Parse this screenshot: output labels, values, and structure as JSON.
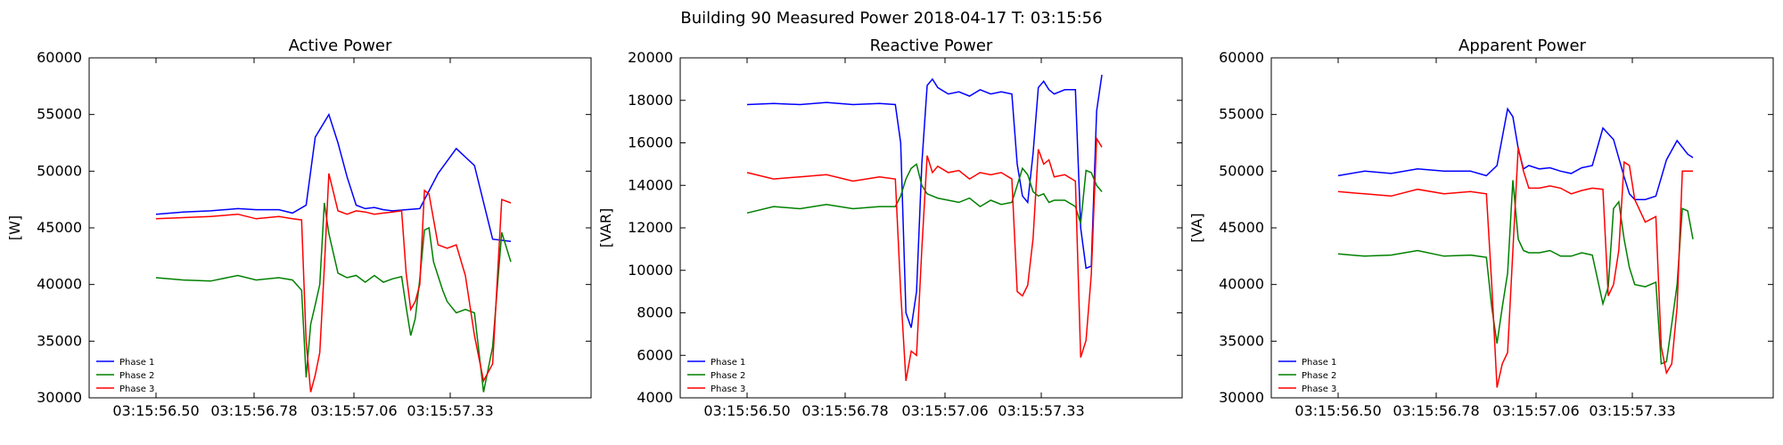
{
  "figure": {
    "suptitle": "Building 90 Measured Power 2018-04-17 T: 03:15:56"
  },
  "chart_data": [
    {
      "type": "line",
      "title": "Active Power",
      "xlabel": "",
      "ylabel": "[W]",
      "x_tick_labels": [
        "03:15:56.50",
        "03:15:56.78",
        "03:15:57.06",
        "03:15:57.33"
      ],
      "ylim": [
        30000,
        60000
      ],
      "y_ticks": [
        30000,
        35000,
        40000,
        45000,
        50000,
        55000,
        60000
      ],
      "legend_position": "bottom-left",
      "grid": false,
      "series": [
        {
          "name": "Phase 1",
          "color": "#0000ff",
          "x": [
            0,
            6,
            12,
            18,
            22,
            27,
            30,
            33,
            35,
            38,
            40,
            42,
            44,
            46,
            48,
            50,
            52,
            55,
            58,
            62,
            66,
            70,
            74,
            78
          ],
          "y": [
            46200,
            46400,
            46500,
            46700,
            46600,
            46600,
            46300,
            47000,
            53000,
            55000,
            52500,
            49500,
            47000,
            46700,
            46800,
            46600,
            46500,
            46600,
            46700,
            49800,
            52000,
            50500,
            44000,
            43800
          ]
        },
        {
          "name": "Phase 2",
          "color": "#008000",
          "x": [
            0,
            6,
            12,
            18,
            22,
            27,
            30,
            32,
            33,
            34,
            35,
            36,
            37,
            38,
            40,
            42,
            44,
            46,
            48,
            50,
            52,
            54,
            55,
            56,
            57,
            58,
            59,
            60,
            61,
            63,
            64,
            66,
            68,
            70,
            72,
            74,
            76,
            78
          ],
          "y": [
            40600,
            40400,
            40300,
            40800,
            40400,
            40600,
            40400,
            39500,
            31800,
            36500,
            38200,
            40000,
            47200,
            44500,
            41000,
            40600,
            40800,
            40200,
            40800,
            40200,
            40500,
            40700,
            38000,
            35500,
            37000,
            40500,
            44800,
            45000,
            42000,
            39500,
            38500,
            37500,
            37800,
            37500,
            30500,
            34500,
            44600,
            42000
          ]
        },
        {
          "name": "Phase 3",
          "color": "#ff0000",
          "x": [
            0,
            6,
            12,
            18,
            22,
            27,
            30,
            32,
            33,
            34,
            35,
            36,
            37,
            38,
            40,
            42,
            44,
            46,
            48,
            50,
            52,
            54,
            55,
            56,
            57,
            58,
            59,
            60,
            62,
            64,
            66,
            68,
            70,
            72,
            74,
            76,
            78
          ],
          "y": [
            45800,
            45900,
            46000,
            46200,
            45800,
            46000,
            45800,
            45700,
            35000,
            30500,
            32000,
            34000,
            41500,
            49800,
            46500,
            46200,
            46500,
            46400,
            46200,
            46300,
            46400,
            46500,
            41000,
            37800,
            38500,
            40000,
            48300,
            48000,
            43500,
            43200,
            43500,
            40800,
            35500,
            31500,
            33000,
            47500,
            47200
          ]
        }
      ]
    },
    {
      "type": "line",
      "title": "Reactive Power",
      "xlabel": "",
      "ylabel": "[VAR]",
      "x_tick_labels": [
        "03:15:56.50",
        "03:15:56.78",
        "03:15:57.06",
        "03:15:57.33"
      ],
      "ylim": [
        4000,
        20000
      ],
      "y_ticks": [
        4000,
        6000,
        8000,
        10000,
        12000,
        14000,
        16000,
        18000,
        20000
      ],
      "legend_position": "bottom-left",
      "grid": false,
      "series": [
        {
          "name": "Phase 1",
          "color": "#0000ff",
          "x": [
            0,
            5,
            10,
            15,
            20,
            25,
            28,
            29,
            30,
            31,
            32,
            33,
            34,
            35,
            36,
            38,
            40,
            42,
            44,
            46,
            48,
            50,
            51,
            52,
            53,
            54,
            55,
            56,
            57,
            58,
            60,
            62,
            63,
            64,
            65,
            66,
            67
          ],
          "y": [
            17800,
            17850,
            17800,
            17900,
            17800,
            17850,
            17800,
            16000,
            8000,
            7300,
            9000,
            15000,
            18700,
            19000,
            18600,
            18300,
            18400,
            18200,
            18500,
            18300,
            18400,
            18300,
            15000,
            13500,
            13200,
            15500,
            18600,
            18900,
            18500,
            18300,
            18500,
            18500,
            12000,
            10100,
            10200,
            17500,
            19200
          ]
        },
        {
          "name": "Phase 2",
          "color": "#008000",
          "x": [
            0,
            5,
            10,
            15,
            20,
            25,
            28,
            29,
            30,
            31,
            32,
            33,
            34,
            35,
            36,
            38,
            40,
            42,
            44,
            46,
            48,
            50,
            51,
            52,
            53,
            54,
            55,
            56,
            57,
            58,
            60,
            62,
            63,
            64,
            65,
            66,
            67
          ],
          "y": [
            12700,
            13000,
            12900,
            13100,
            12900,
            13000,
            13000,
            13500,
            14300,
            14800,
            15000,
            14000,
            13600,
            13500,
            13400,
            13300,
            13200,
            13400,
            13000,
            13300,
            13100,
            13200,
            14000,
            14800,
            14500,
            13700,
            13500,
            13600,
            13200,
            13300,
            13300,
            13000,
            12200,
            14700,
            14600,
            14000,
            13700
          ]
        },
        {
          "name": "Phase 3",
          "color": "#ff0000",
          "x": [
            0,
            5,
            10,
            15,
            20,
            25,
            28,
            29,
            30,
            31,
            32,
            33,
            34,
            35,
            36,
            38,
            40,
            42,
            44,
            46,
            48,
            50,
            51,
            52,
            53,
            54,
            55,
            56,
            57,
            58,
            60,
            62,
            63,
            64,
            65,
            66,
            67
          ],
          "y": [
            14600,
            14300,
            14400,
            14500,
            14200,
            14400,
            14300,
            9000,
            4800,
            6200,
            6000,
            11000,
            15400,
            14600,
            14900,
            14600,
            14700,
            14300,
            14600,
            14500,
            14600,
            14300,
            9000,
            8800,
            9300,
            11500,
            15700,
            15000,
            15200,
            14400,
            14500,
            14200,
            5900,
            6700,
            9800,
            16200,
            15800
          ]
        }
      ]
    },
    {
      "type": "line",
      "title": "Apparent Power",
      "xlabel": "",
      "ylabel": "[VA]",
      "x_tick_labels": [
        "03:15:56.50",
        "03:15:56.78",
        "03:15:57.06",
        "03:15:57.33"
      ],
      "ylim": [
        30000,
        60000
      ],
      "y_ticks": [
        30000,
        35000,
        40000,
        45000,
        50000,
        55000,
        60000
      ],
      "legend_position": "bottom-left",
      "grid": false,
      "series": [
        {
          "name": "Phase 1",
          "color": "#0000ff",
          "x": [
            0,
            5,
            10,
            15,
            20,
            25,
            28,
            30,
            32,
            33,
            34,
            35,
            36,
            38,
            40,
            42,
            44,
            46,
            48,
            50,
            52,
            54,
            55,
            56,
            58,
            60,
            62,
            64,
            66,
            67
          ],
          "y": [
            49600,
            50000,
            49800,
            50200,
            50000,
            50000,
            49600,
            50500,
            55500,
            54800,
            52000,
            50200,
            50500,
            50200,
            50300,
            50000,
            49800,
            50300,
            50500,
            53800,
            52800,
            49500,
            48000,
            47500,
            47500,
            47800,
            51000,
            52700,
            51500,
            51200
          ]
        },
        {
          "name": "Phase 2",
          "color": "#008000",
          "x": [
            0,
            5,
            10,
            15,
            20,
            25,
            28,
            29,
            30,
            31,
            32,
            33,
            34,
            35,
            36,
            38,
            40,
            42,
            44,
            46,
            48,
            50,
            51,
            52,
            53,
            54,
            55,
            56,
            58,
            60,
            61,
            62,
            63,
            64,
            65,
            66,
            67
          ],
          "y": [
            42700,
            42500,
            42600,
            43000,
            42500,
            42600,
            42400,
            38000,
            34800,
            38000,
            41000,
            49200,
            44000,
            43000,
            42800,
            42800,
            43000,
            42500,
            42500,
            42800,
            42600,
            38300,
            39800,
            46700,
            47300,
            44000,
            41500,
            40000,
            39800,
            40200,
            33000,
            33200,
            36500,
            40000,
            46700,
            46500,
            44000
          ]
        },
        {
          "name": "Phase 3",
          "color": "#ff0000",
          "x": [
            0,
            5,
            10,
            15,
            20,
            25,
            28,
            29,
            30,
            31,
            32,
            33,
            34,
            35,
            36,
            38,
            40,
            42,
            44,
            46,
            48,
            50,
            51,
            52,
            53,
            54,
            55,
            56,
            58,
            60,
            61,
            62,
            63,
            64,
            65,
            66,
            67
          ],
          "y": [
            48200,
            48000,
            47800,
            48400,
            48000,
            48200,
            48000,
            40000,
            30900,
            33000,
            34000,
            43000,
            52100,
            50000,
            48500,
            48500,
            48700,
            48500,
            48000,
            48300,
            48500,
            48400,
            39000,
            40000,
            43000,
            50800,
            50500,
            47500,
            45500,
            46000,
            34500,
            32200,
            33000,
            38000,
            50000,
            50000,
            50000
          ]
        }
      ]
    }
  ]
}
